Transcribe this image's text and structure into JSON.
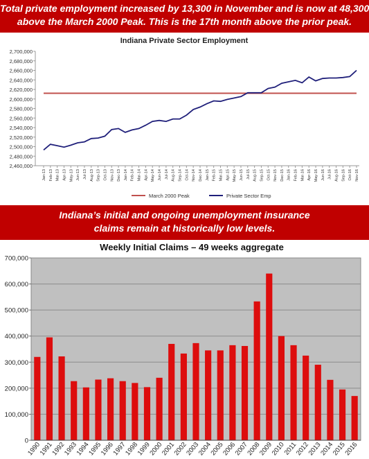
{
  "banner_top": {
    "line1": "Total private employment increased by 13,300 in November and is now at 48,300",
    "line2": "above the March 2000 Peak. This is the 17th  month above the prior peak."
  },
  "banner_middle": {
    "line1": "Indiana’s initial and ongoing unemployment insurance",
    "line2": "claims remain at historically low levels."
  },
  "chart_data": [
    {
      "type": "line",
      "title": "Indiana Private Sector Employment",
      "xlabel": "",
      "ylabel": "",
      "ylim": [
        2460000,
        2700000
      ],
      "yticks": [
        2460000,
        2480000,
        2500000,
        2520000,
        2540000,
        2560000,
        2580000,
        2600000,
        2620000,
        2640000,
        2660000,
        2680000,
        2700000
      ],
      "ytick_labels": [
        "2,460,000",
        "2,480,000",
        "2,500,000",
        "2,520,000",
        "2,540,000",
        "2,560,000",
        "2,580,000",
        "2,600,000",
        "2,620,000",
        "2,640,000",
        "2,660,000",
        "2,680,000",
        "2,700,000"
      ],
      "categories": [
        "Jan-13",
        "Feb-13",
        "Mar-13",
        "Apr-13",
        "May-13",
        "Jun-13",
        "Jul-13",
        "Aug-13",
        "Sep-13",
        "Oct-13",
        "Nov-13",
        "Dec-13",
        "Jan-14",
        "Feb-14",
        "Mar-14",
        "Apr-14",
        "May-14",
        "Jun-14",
        "Jul-14",
        "Aug-14",
        "Sep-14",
        "Oct-14",
        "Nov-14",
        "Dec-14",
        "Jan-15",
        "Feb-15",
        "Mar-15",
        "Apr-15",
        "May-15",
        "Jun-15",
        "Jul-15",
        "Aug-15",
        "Sep-15",
        "Oct-15",
        "Nov-15",
        "Dec-15",
        "Jan-16",
        "Feb-16",
        "Mar-16",
        "Apr-16",
        "May-16",
        "Jun-16",
        "Jul-16",
        "Aug-16",
        "Sep-16",
        "Oct-16",
        "Nov-16"
      ],
      "series": [
        {
          "name": "March 2000 Peak",
          "color": "#c0504d",
          "values": [
            2612000,
            2612000,
            2612000,
            2612000,
            2612000,
            2612000,
            2612000,
            2612000,
            2612000,
            2612000,
            2612000,
            2612000,
            2612000,
            2612000,
            2612000,
            2612000,
            2612000,
            2612000,
            2612000,
            2612000,
            2612000,
            2612000,
            2612000,
            2612000,
            2612000,
            2612000,
            2612000,
            2612000,
            2612000,
            2612000,
            2612000,
            2612000,
            2612000,
            2612000,
            2612000,
            2612000,
            2612000,
            2612000,
            2612000,
            2612000,
            2612000,
            2612000,
            2612000,
            2612000,
            2612000,
            2612000,
            2612000
          ]
        },
        {
          "name": "Private Sector Emp",
          "color": "#1f1f7a",
          "values": [
            2493000,
            2505000,
            2502000,
            2499000,
            2503000,
            2508000,
            2510000,
            2517000,
            2518000,
            2522000,
            2536000,
            2538000,
            2530000,
            2535000,
            2538000,
            2545000,
            2553000,
            2555000,
            2553000,
            2558000,
            2558000,
            2566000,
            2578000,
            2583000,
            2590000,
            2596000,
            2595000,
            2599000,
            2602000,
            2605000,
            2613000,
            2613000,
            2613000,
            2622000,
            2625000,
            2633000,
            2636000,
            2639000,
            2634000,
            2646000,
            2638000,
            2643000,
            2644000,
            2644000,
            2645000,
            2647000,
            2660000
          ]
        }
      ],
      "legend_position": "bottom"
    },
    {
      "type": "bar",
      "title": "Weekly Initial Claims – 49 weeks aggregate",
      "xlabel": "",
      "ylabel": "",
      "ylim": [
        0,
        700000
      ],
      "yticks": [
        0,
        100000,
        200000,
        300000,
        400000,
        500000,
        600000,
        700000
      ],
      "ytick_labels": [
        "0",
        "100,000",
        "200,000",
        "300,000",
        "400,000",
        "500,000",
        "600,000",
        "700,000"
      ],
      "categories": [
        "1990",
        "1991",
        "1992",
        "1993",
        "1994",
        "1995",
        "1996",
        "1997",
        "1998",
        "1999",
        "2000",
        "2001",
        "2002",
        "2003",
        "2004",
        "2005",
        "2006",
        "2007",
        "2008",
        "2009",
        "2010",
        "2011",
        "2012",
        "2013",
        "2014",
        "2015",
        "2016"
      ],
      "values": [
        320000,
        395000,
        322000,
        227000,
        203000,
        233000,
        238000,
        227000,
        220000,
        204000,
        240000,
        370000,
        333000,
        373000,
        345000,
        345000,
        365000,
        362000,
        533000,
        640000,
        400000,
        365000,
        325000,
        290000,
        232000,
        195000,
        170000
      ],
      "bar_color": "#dd0d0d",
      "plot_background": "#c0c0c0",
      "grid": true
    }
  ]
}
